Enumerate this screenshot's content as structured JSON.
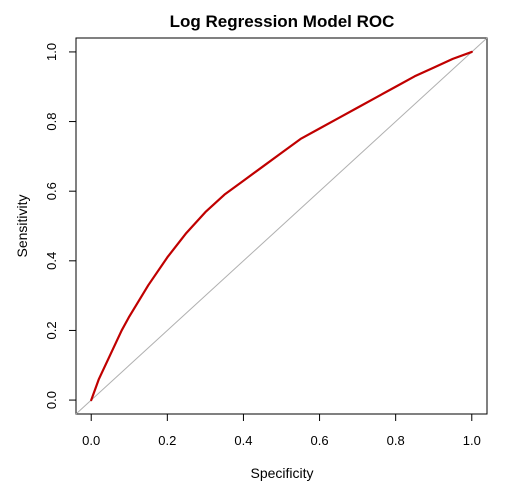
{
  "chart_data": {
    "type": "line",
    "title": "Log Regression Model ROC",
    "xlabel": "Specificity",
    "ylabel": "Sensitivity",
    "xlim": [
      -0.04,
      1.04
    ],
    "ylim": [
      -0.04,
      1.04
    ],
    "x_ticks": [
      "0.0",
      "0.2",
      "0.4",
      "0.6",
      "0.8",
      "1.0"
    ],
    "y_ticks": [
      "0.0",
      "0.2",
      "0.4",
      "0.6",
      "0.8",
      "1.0"
    ],
    "grid": false,
    "legend": "none",
    "series": [
      {
        "color": "#c00000",
        "x": [
          0.0,
          0.02,
          0.05,
          0.08,
          0.1,
          0.15,
          0.2,
          0.25,
          0.3,
          0.35,
          0.4,
          0.45,
          0.5,
          0.55,
          0.6,
          0.65,
          0.7,
          0.75,
          0.8,
          0.85,
          0.9,
          0.95,
          1.0
        ],
        "y": [
          0.0,
          0.06,
          0.13,
          0.2,
          0.24,
          0.33,
          0.41,
          0.48,
          0.54,
          0.59,
          0.63,
          0.67,
          0.71,
          0.75,
          0.78,
          0.81,
          0.84,
          0.87,
          0.9,
          0.93,
          0.955,
          0.98,
          1.0
        ]
      }
    ],
    "reference_line": {
      "type": "diagonal",
      "color": "#b0b0b0"
    }
  }
}
